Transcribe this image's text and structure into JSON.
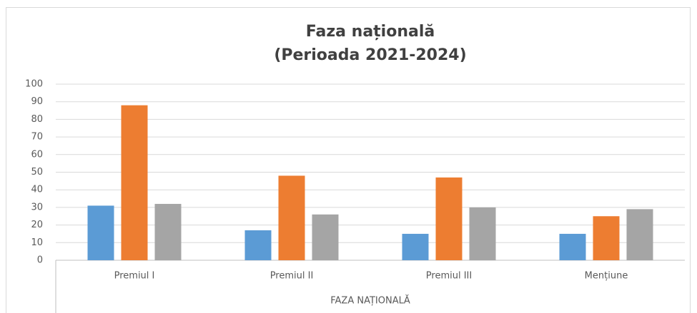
{
  "chart_data": {
    "type": "bar",
    "title": [
      "Faza națională",
      "(Perioada 2021-2024)"
    ],
    "xlabel": "FAZA NAȚIONALĂ",
    "categories": [
      "Premiul I",
      "Premiul II",
      "Premiul III",
      "Mențiune"
    ],
    "series": [
      {
        "color": "#5b9bd5",
        "values": [
          31,
          17,
          15,
          15
        ]
      },
      {
        "color": "#ed7d31",
        "values": [
          88,
          48,
          47,
          25
        ]
      },
      {
        "color": "#a5a5a5",
        "values": [
          32,
          26,
          30,
          29
        ]
      }
    ],
    "ylim": [
      0,
      100
    ],
    "yticks": [
      0,
      10,
      20,
      30,
      40,
      50,
      60,
      70,
      80,
      90,
      100
    ],
    "grid": true
  }
}
